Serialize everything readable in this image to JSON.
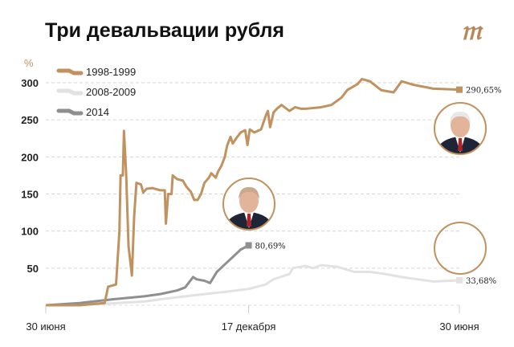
{
  "title": "Три девальвации рубля",
  "logo": "m",
  "chart_data": {
    "type": "line",
    "title": "Три девальвации рубля",
    "ylabel": "%",
    "ylim": [
      0,
      310
    ],
    "xlim": [
      0,
      365
    ],
    "yticks": [
      50,
      100,
      150,
      200,
      250,
      300
    ],
    "xticks": [
      {
        "x": 0,
        "label": "30 июня"
      },
      {
        "x": 179,
        "label": "17 декабря"
      },
      {
        "x": 365,
        "label": "30 июня"
      }
    ],
    "legend_position": "top-left",
    "grid": true,
    "series": [
      {
        "name": "1998-1999",
        "color": "#c0925f",
        "end_label": "290,65%",
        "x": [
          0,
          30,
          52,
          55,
          62,
          65,
          66,
          68,
          69,
          71,
          73,
          76,
          78,
          80,
          84,
          86,
          89,
          94,
          101,
          105,
          106,
          108,
          111,
          112,
          116,
          121,
          124,
          128,
          131,
          134,
          137,
          140,
          144,
          146,
          150,
          152,
          155,
          158,
          160,
          163,
          165,
          168,
          172,
          176,
          178,
          180,
          184,
          190,
          194,
          196,
          198,
          201,
          204,
          208,
          215,
          220,
          225,
          230,
          243,
          252,
          261,
          266,
          275,
          279,
          286,
          296,
          307,
          314,
          325,
          342,
          365
        ],
        "y": [
          0,
          0,
          3,
          25,
          28,
          100,
          175,
          175,
          235,
          175,
          80,
          40,
          120,
          165,
          163,
          152,
          157,
          158,
          155,
          155,
          110,
          150,
          150,
          175,
          170,
          168,
          160,
          153,
          142,
          142,
          150,
          165,
          172,
          178,
          172,
          180,
          188,
          200,
          215,
          227,
          218,
          225,
          233,
          236,
          216,
          237,
          233,
          237,
          255,
          262,
          240,
          260,
          265,
          270,
          262,
          267,
          265,
          265,
          267,
          270,
          280,
          290,
          298,
          305,
          302,
          290,
          287,
          302,
          297,
          292,
          290.65
        ]
      },
      {
        "name": "2008-2009",
        "color": "#e2e2e2",
        "end_label": "33,68%",
        "x": [
          0,
          52,
          87,
          101,
          123,
          158,
          179,
          194,
          201,
          215,
          218,
          229,
          236,
          243,
          257,
          272,
          286,
          300,
          314,
          328,
          342,
          357,
          365
        ],
        "y": [
          0,
          2,
          5,
          8,
          12,
          18,
          22,
          28,
          35,
          42,
          50,
          53,
          50,
          54,
          52,
          45,
          45,
          42,
          38,
          35,
          32,
          33,
          33.68
        ]
      },
      {
        "name": "2014",
        "color": "#8f8f8f",
        "end_label": "80,69%",
        "x": [
          0,
          30,
          59,
          87,
          101,
          116,
          123,
          126,
          130,
          133,
          140,
          145,
          151,
          158,
          165,
          172,
          179
        ],
        "y": [
          0,
          3,
          8,
          12,
          15,
          20,
          24,
          30,
          38,
          35,
          33,
          30,
          45,
          55,
          65,
          75,
          80.69
        ]
      }
    ]
  }
}
